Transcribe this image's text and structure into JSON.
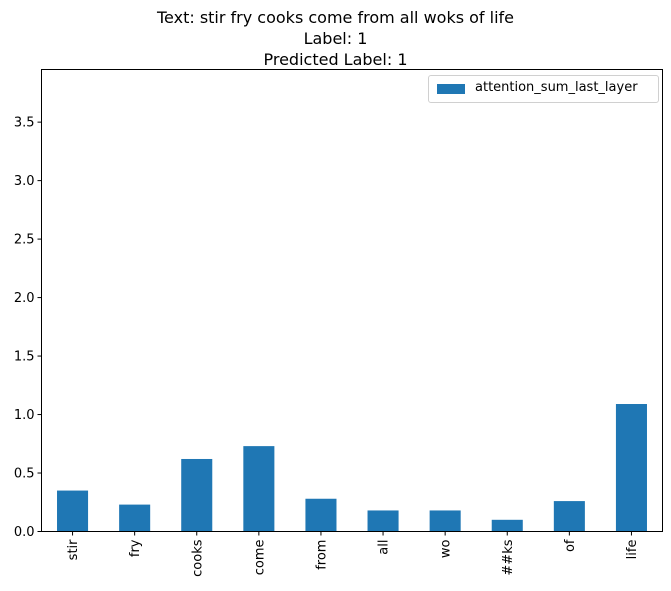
{
  "chart_data": {
    "type": "bar",
    "title_lines": [
      "Text: stir fry cooks come from all woks of life",
      "Label: 1",
      "Predicted Label: 1"
    ],
    "categories": [
      "stir",
      "fry",
      "cooks",
      "come",
      "from",
      "all",
      "wo",
      "##ks",
      "of",
      "life"
    ],
    "series": [
      {
        "name": "attention_sum_last_layer",
        "color": "#1f77b4",
        "values": [
          0.35,
          0.23,
          0.62,
          0.73,
          0.28,
          0.18,
          0.18,
          0.1,
          0.26,
          1.09
        ]
      }
    ],
    "y_ticks": [
      "0.0",
      "0.5",
      "1.0",
      "1.5",
      "2.0",
      "2.5",
      "3.0",
      "3.5"
    ],
    "ylim": [
      0,
      3.95
    ],
    "xlabel": "",
    "ylabel": "",
    "grid": false,
    "legend_position": "top-right"
  }
}
